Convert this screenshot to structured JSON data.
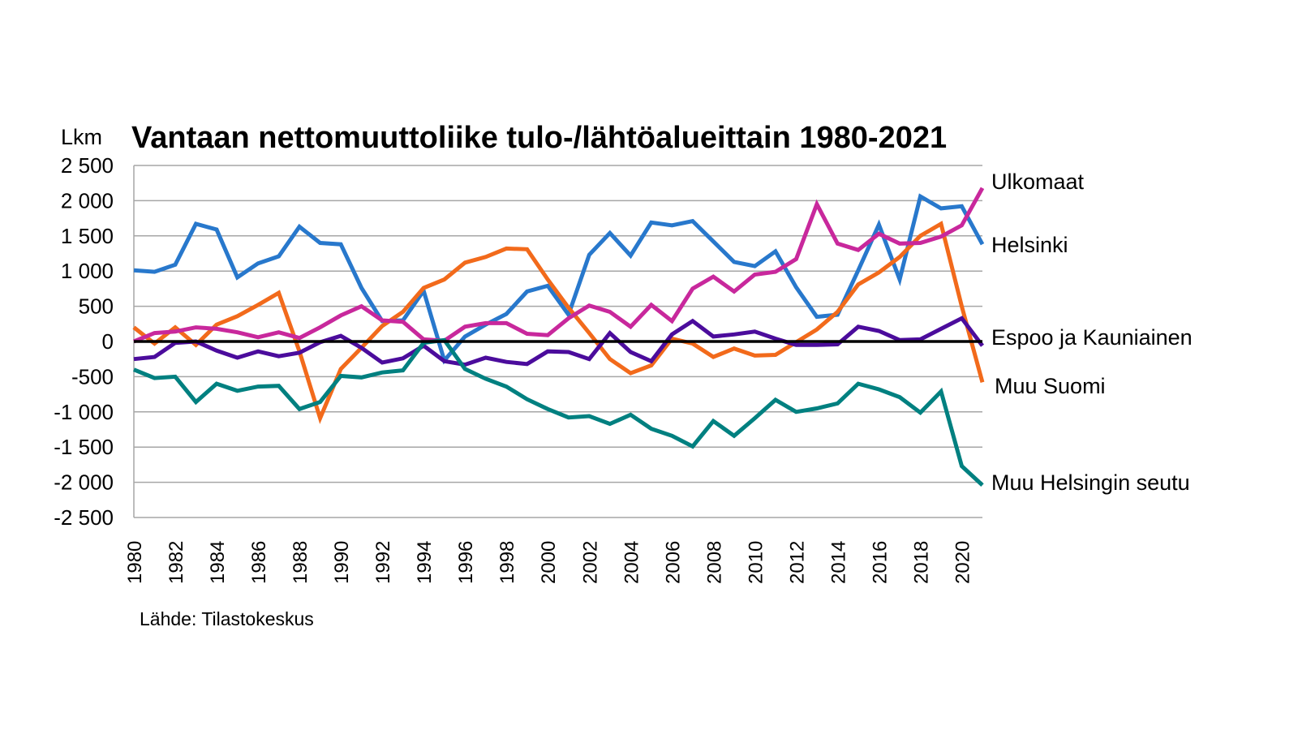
{
  "chart_data": {
    "type": "line",
    "title": "Vantaan nettomuuttoliike tulo-/lähtöalueittain 1980-2021",
    "ylabel": "Lkm",
    "xlabel": "",
    "source": "Lähde: Tilastokeskus",
    "ylim": [
      -2500,
      2500
    ],
    "yticks": [
      2500,
      2000,
      1500,
      1000,
      500,
      0,
      -500,
      -1000,
      -1500,
      -2000,
      -2500
    ],
    "ytick_labels": [
      "2 500",
      "2 000",
      "1 500",
      "1 000",
      "500",
      "0",
      "-500",
      "-1 000",
      "-1 500",
      "-2 000",
      "-2 500"
    ],
    "xtick_labels": [
      "1980",
      "1982",
      "1984",
      "1986",
      "1988",
      "1990",
      "1992",
      "1994",
      "1996",
      "1998",
      "2000",
      "2002",
      "2004",
      "2006",
      "2008",
      "2010",
      "2012",
      "2014",
      "2016",
      "2018",
      "2020"
    ],
    "grid": true,
    "legend": "right (inline labels)",
    "x": [
      1980,
      1981,
      1982,
      1983,
      1984,
      1985,
      1986,
      1987,
      1988,
      1989,
      1990,
      1991,
      1992,
      1993,
      1994,
      1995,
      1996,
      1997,
      1998,
      1999,
      2000,
      2001,
      2002,
      2003,
      2004,
      2005,
      2006,
      2007,
      2008,
      2009,
      2010,
      2011,
      2012,
      2013,
      2014,
      2015,
      2016,
      2017,
      2018,
      2019,
      2020,
      2021
    ],
    "series": [
      {
        "name": "Helsinki",
        "color": "#2878CC",
        "values": [
          1010,
          990,
          1090,
          1670,
          1590,
          910,
          1110,
          1210,
          1630,
          1400,
          1380,
          760,
          290,
          300,
          720,
          -270,
          70,
          240,
          390,
          710,
          790,
          380,
          1230,
          1540,
          1220,
          1690,
          1650,
          1710,
          1420,
          1130,
          1070,
          1280,
          770,
          350,
          380,
          1010,
          1660,
          880,
          2060,
          1890,
          1920,
          1380
        ]
      },
      {
        "name": "Muu Suomi",
        "color": "#F26A1B",
        "values": [
          200,
          -30,
          200,
          -50,
          240,
          360,
          520,
          690,
          -140,
          -1090,
          -390,
          -90,
          220,
          420,
          760,
          880,
          1120,
          1200,
          1320,
          1310,
          880,
          480,
          120,
          -250,
          -450,
          -340,
          40,
          -30,
          -220,
          -100,
          -200,
          -190,
          -10,
          170,
          420,
          810,
          980,
          1200,
          1500,
          1670,
          500,
          -580
        ]
      },
      {
        "name": "Ulkomaat",
        "color": "#C8289C",
        "values": [
          0,
          120,
          140,
          200,
          180,
          130,
          60,
          130,
          50,
          200,
          370,
          500,
          300,
          280,
          30,
          10,
          210,
          260,
          260,
          110,
          90,
          330,
          510,
          420,
          210,
          520,
          290,
          750,
          920,
          710,
          950,
          990,
          1170,
          1950,
          1390,
          1300,
          1530,
          1390,
          1400,
          1490,
          1650,
          2180
        ]
      },
      {
        "name": "Espoo ja Kauniainen",
        "color": "#4B0C9C",
        "values": [
          -250,
          -220,
          -20,
          0,
          -130,
          -230,
          -140,
          -210,
          -160,
          -10,
          80,
          -90,
          -300,
          -240,
          -60,
          -280,
          -330,
          -230,
          -290,
          -320,
          -140,
          -150,
          -250,
          120,
          -150,
          -280,
          100,
          290,
          70,
          100,
          140,
          40,
          -50,
          -50,
          -40,
          210,
          150,
          20,
          30,
          180,
          330,
          -60
        ]
      },
      {
        "name": "Muu Helsingin seutu",
        "color": "#008080",
        "values": [
          -400,
          -520,
          -500,
          -860,
          -600,
          -700,
          -640,
          -630,
          -960,
          -860,
          -490,
          -510,
          -440,
          -410,
          -20,
          20,
          -390,
          -530,
          -640,
          -820,
          -960,
          -1080,
          -1060,
          -1170,
          -1040,
          -1240,
          -1340,
          -1490,
          -1130,
          -1340,
          -1090,
          -830,
          -1000,
          -950,
          -880,
          -600,
          -680,
          -790,
          -1010,
          -710,
          -1770,
          -2040
        ]
      }
    ]
  }
}
